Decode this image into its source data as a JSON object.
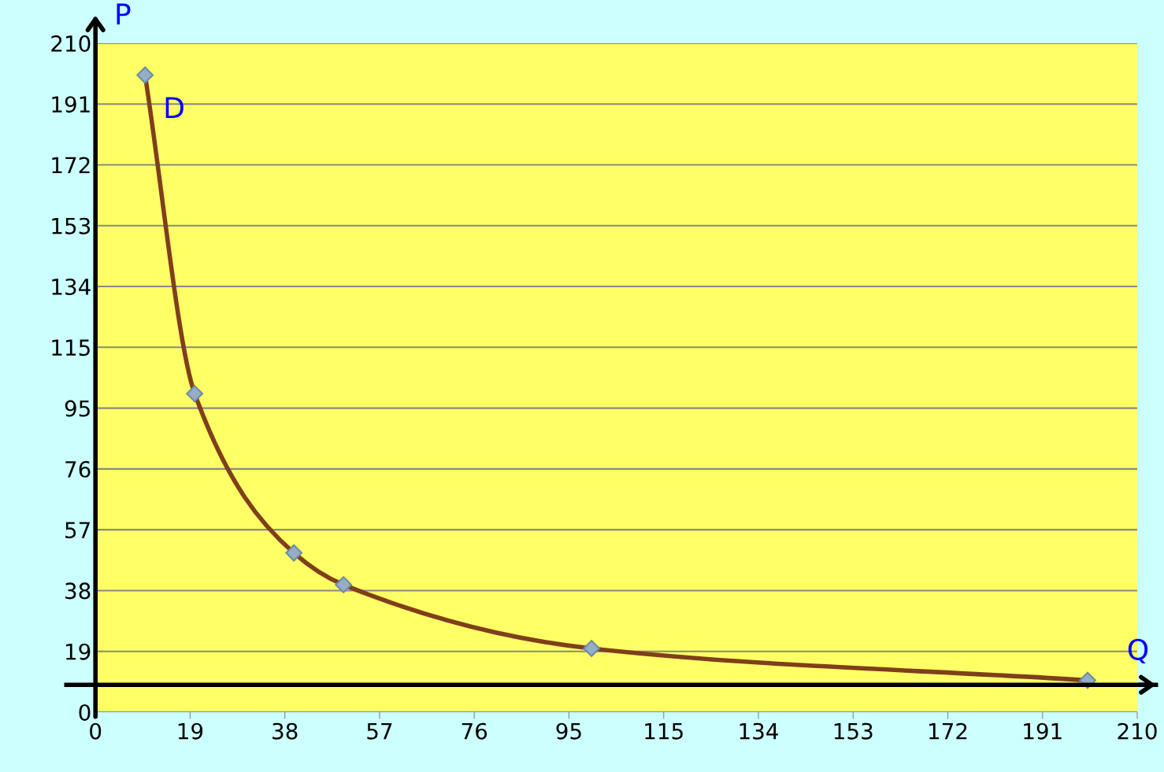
{
  "chart_data": {
    "type": "line",
    "xlabel": "Q",
    "ylabel": "P",
    "x": [
      10,
      20,
      40,
      50,
      100,
      200
    ],
    "series": [
      {
        "color": "#7f3f1a",
        "values": [
          200,
          100,
          50,
          40,
          20,
          10
        ]
      }
    ],
    "marker": "diamond",
    "line_style": "solid",
    "grid": "y",
    "xlim": [
      0,
      210
    ],
    "ylim": [
      0,
      210
    ],
    "xticks": [
      0,
      {
        "value": 19.09,
        "label": "19"
      },
      {
        "value": 38.18,
        "label": "38"
      },
      {
        "value": 57.27,
        "label": "57"
      },
      {
        "value": 76.36,
        "label": "76"
      },
      {
        "value": 95.45,
        "label": "95"
      },
      {
        "value": 114.55,
        "label": "115"
      },
      {
        "value": 133.64,
        "label": "134"
      },
      {
        "value": 152.73,
        "label": "153"
      },
      {
        "value": 171.82,
        "label": "172"
      },
      {
        "value": 190.91,
        "label": "191"
      },
      210
    ],
    "yticks": [
      0,
      {
        "value": 19.09,
        "label": "19"
      },
      {
        "value": 38.18,
        "label": "38"
      },
      {
        "value": 57.27,
        "label": "57"
      },
      {
        "value": 76.36,
        "label": "76"
      },
      {
        "value": 95.45,
        "label": "95"
      },
      {
        "value": 114.55,
        "label": "115"
      },
      {
        "value": 133.64,
        "label": "134"
      },
      {
        "value": 152.73,
        "label": "153"
      },
      {
        "value": 171.82,
        "label": "172"
      },
      {
        "value": 190.91,
        "label": "191"
      },
      210
    ],
    "ref_lines": [
      {
        "axis": "y",
        "value": 8.6,
        "color": "#000000"
      }
    ],
    "annotations": [
      "D"
    ]
  }
}
